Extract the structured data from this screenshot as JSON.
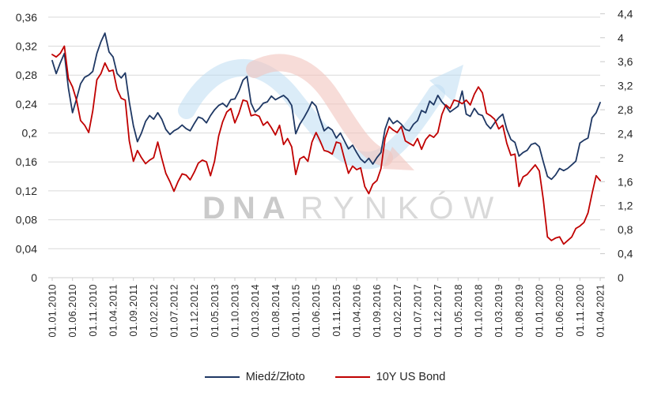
{
  "chart_data": {
    "type": "line",
    "title": "",
    "grid": true,
    "legend_position": "bottom",
    "style": {
      "grid_color": "#D9D9D9",
      "axis_tick_color": "#C9C9C9",
      "axis_text_color": "#262626",
      "background": "#FFFFFF"
    },
    "watermark": {
      "part1": "DNA",
      "part2": "RYNKÓW",
      "up_arrow_color": "#BDDDF2",
      "down_arrow_color": "#F2C4BE"
    },
    "x_axis": {
      "start": "01.01.2010",
      "end": "01.04.2021",
      "months_per_tick": 5,
      "tick_labels": [
        "01.01.2010",
        "01.06.2010",
        "01.11.2010",
        "01.04.2011",
        "01.09.2011",
        "01.02.2012",
        "01.07.2012",
        "01.12.2012",
        "01.05.2013",
        "01.10.2013",
        "01.03.2014",
        "01.08.2014",
        "01.01.2015",
        "01.06.2015",
        "01.11.2015",
        "01.04.2016",
        "01.09.2016",
        "01.02.2017",
        "01.07.2017",
        "01.12.2017",
        "01.05.2018",
        "01.10.2018",
        "01.03.2019",
        "01.08.2019",
        "01.01.2020",
        "01.06.2020",
        "01.11.2020",
        "01.04.2021"
      ]
    },
    "left_axis": {
      "min": 0,
      "max": 0.36,
      "tick_labels": [
        "0,36",
        "0,32",
        "0,28",
        "0,24",
        "0,2",
        "0,16",
        "0,12",
        "0,08",
        "0,04",
        "0"
      ],
      "tick_values": [
        0.36,
        0.32,
        0.28,
        0.24,
        0.2,
        0.16,
        0.12,
        0.08,
        0.04,
        0
      ]
    },
    "right_axis": {
      "min": 0,
      "max": 4.4,
      "tick_labels": [
        "4,4",
        "4",
        "3,6",
        "3,2",
        "2,8",
        "2,4",
        "2",
        "1,6",
        "1,2",
        "0,8",
        "0,4",
        "0"
      ],
      "tick_values": [
        4.4,
        4,
        3.6,
        3.2,
        2.8,
        2.4,
        2,
        1.6,
        1.2,
        0.8,
        0.4,
        0
      ]
    },
    "series": [
      {
        "name": "Miedź/Złoto",
        "color": "#1F3864",
        "axis": "left",
        "frequency": "monthly",
        "start": "01.01.2010",
        "values": [
          0.3,
          0.282,
          0.297,
          0.31,
          0.262,
          0.228,
          0.247,
          0.268,
          0.277,
          0.28,
          0.285,
          0.31,
          0.326,
          0.338,
          0.312,
          0.305,
          0.282,
          0.276,
          0.283,
          0.243,
          0.21,
          0.188,
          0.2,
          0.216,
          0.224,
          0.219,
          0.228,
          0.219,
          0.205,
          0.198,
          0.203,
          0.206,
          0.211,
          0.206,
          0.203,
          0.213,
          0.222,
          0.22,
          0.214,
          0.224,
          0.232,
          0.238,
          0.241,
          0.236,
          0.246,
          0.247,
          0.258,
          0.273,
          0.278,
          0.241,
          0.229,
          0.234,
          0.241,
          0.243,
          0.251,
          0.246,
          0.249,
          0.252,
          0.247,
          0.238,
          0.199,
          0.212,
          0.221,
          0.231,
          0.243,
          0.237,
          0.219,
          0.203,
          0.208,
          0.204,
          0.193,
          0.2,
          0.189,
          0.178,
          0.183,
          0.173,
          0.164,
          0.159,
          0.165,
          0.157,
          0.166,
          0.173,
          0.205,
          0.221,
          0.213,
          0.217,
          0.212,
          0.205,
          0.203,
          0.212,
          0.217,
          0.231,
          0.228,
          0.244,
          0.239,
          0.252,
          0.243,
          0.237,
          0.229,
          0.233,
          0.237,
          0.258,
          0.226,
          0.223,
          0.234,
          0.226,
          0.224,
          0.212,
          0.206,
          0.214,
          0.221,
          0.226,
          0.205,
          0.191,
          0.187,
          0.168,
          0.173,
          0.176,
          0.184,
          0.186,
          0.181,
          0.16,
          0.14,
          0.136,
          0.142,
          0.151,
          0.148,
          0.151,
          0.156,
          0.161,
          0.186,
          0.19,
          0.193,
          0.221,
          0.228,
          0.242
        ]
      },
      {
        "name": "10Y US Bond",
        "color": "#C00000",
        "axis": "right",
        "frequency": "monthly",
        "start": "01.01.2010",
        "values": [
          3.72,
          3.68,
          3.74,
          3.86,
          3.32,
          3.18,
          2.96,
          2.62,
          2.54,
          2.42,
          2.78,
          3.3,
          3.4,
          3.58,
          3.44,
          3.46,
          3.14,
          2.99,
          2.96,
          2.28,
          1.94,
          2.12,
          2.0,
          1.9,
          1.96,
          2.0,
          2.26,
          1.99,
          1.74,
          1.6,
          1.44,
          1.6,
          1.73,
          1.71,
          1.63,
          1.76,
          1.91,
          1.96,
          1.93,
          1.7,
          1.94,
          2.36,
          2.6,
          2.76,
          2.82,
          2.58,
          2.74,
          2.96,
          2.94,
          2.7,
          2.72,
          2.69,
          2.54,
          2.6,
          2.5,
          2.38,
          2.54,
          2.22,
          2.32,
          2.18,
          1.72,
          1.98,
          2.02,
          1.94,
          2.26,
          2.42,
          2.28,
          2.12,
          2.1,
          2.06,
          2.26,
          2.24,
          1.98,
          1.74,
          1.86,
          1.8,
          1.83,
          1.52,
          1.4,
          1.56,
          1.62,
          1.82,
          2.32,
          2.52,
          2.46,
          2.42,
          2.52,
          2.28,
          2.24,
          2.2,
          2.32,
          2.14,
          2.3,
          2.38,
          2.34,
          2.42,
          2.72,
          2.88,
          2.82,
          2.96,
          2.94,
          2.9,
          2.96,
          2.88,
          3.06,
          3.18,
          3.08,
          2.74,
          2.7,
          2.64,
          2.48,
          2.54,
          2.24,
          2.04,
          2.06,
          1.52,
          1.68,
          1.72,
          1.8,
          1.88,
          1.78,
          1.3,
          0.68,
          0.62,
          0.66,
          0.68,
          0.56,
          0.62,
          0.68,
          0.82,
          0.86,
          0.92,
          1.08,
          1.4,
          1.7,
          1.62
        ]
      }
    ]
  }
}
